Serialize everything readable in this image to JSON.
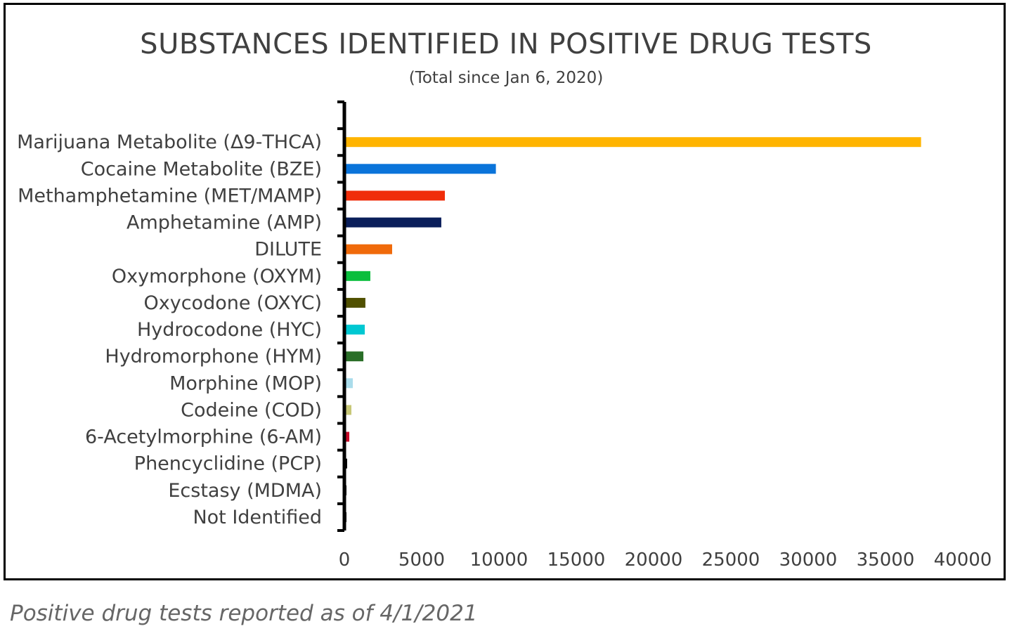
{
  "chart_data": {
    "type": "bar",
    "orientation": "horizontal",
    "title": "SUBSTANCES IDENTIFIED IN POSITIVE DRUG TESTS",
    "subtitle": "(Total since Jan 6, 2020)",
    "categories": [
      "Marijuana Metabolite (Δ9-THCA)",
      "Cocaine Metabolite (BZE)",
      "Methamphetamine (MET/MAMP)",
      "Amphetamine (AMP)",
      "DILUTE",
      "Oxymorphone (OXYM)",
      "Oxycodone (OXYC)",
      "Hydrocodone (HYC)",
      "Hydromorphone (HYM)",
      "Morphine (MOP)",
      "Codeine (COD)",
      "6-Acetylmorphine (6-AM)",
      "Phencyclidine (PCP)",
      "Ecstasy (MDMA)",
      "Not Identified"
    ],
    "values": [
      37300,
      9800,
      6500,
      6270,
      3090,
      1680,
      1360,
      1320,
      1230,
      545,
      455,
      320,
      180,
      20,
      20
    ],
    "colors": [
      "#FFB400",
      "#0A74DA",
      "#F02D0A",
      "#0A1E5A",
      "#F06A0A",
      "#0ABE3C",
      "#505000",
      "#00C8D2",
      "#2A6E28",
      "#AADCEB",
      "#C8C878",
      "#C80A28",
      "#000000",
      "#000000",
      "#000000"
    ],
    "xlim": [
      0,
      40000
    ],
    "xticks": [
      0,
      5000,
      10000,
      15000,
      20000,
      25000,
      30000,
      35000,
      40000
    ],
    "grid": "vertical",
    "legend": "none"
  },
  "caption": "Positive drug tests reported as of 4/1/2021"
}
